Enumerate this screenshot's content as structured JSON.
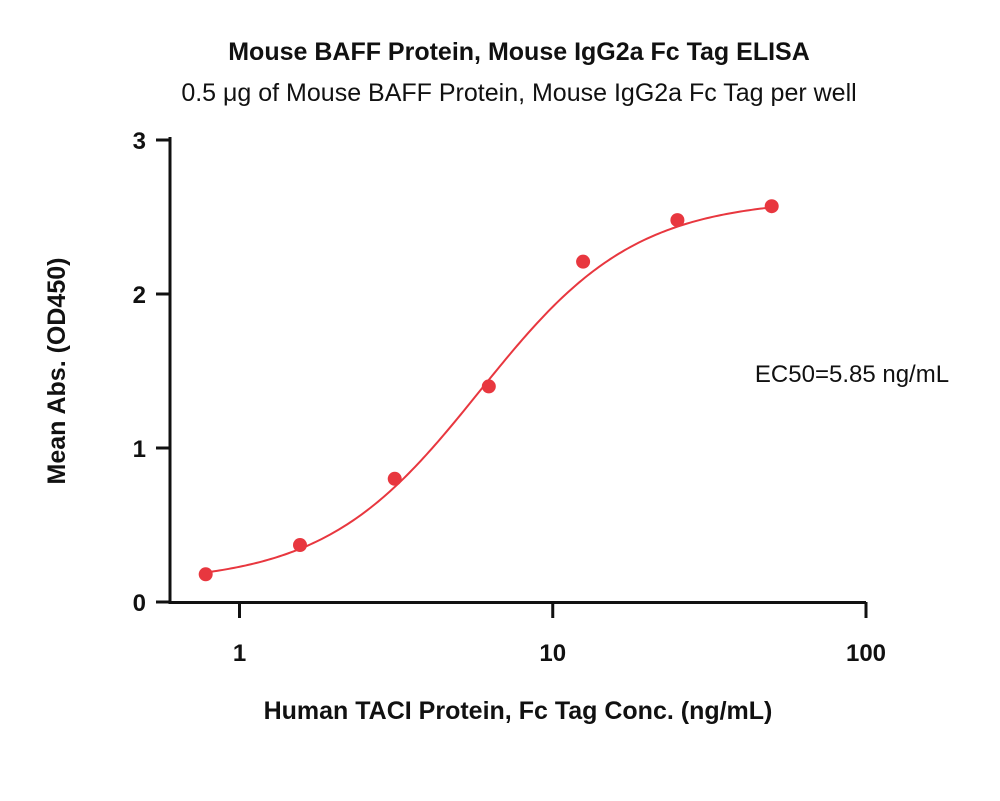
{
  "chart_data": {
    "type": "scatter",
    "title": "Mouse BAFF Protein, Mouse IgG2a Fc Tag ELISA",
    "subtitle": "0.5 μg of Mouse BAFF Protein, Mouse IgG2a Fc Tag per well",
    "xlabel": "Human TACI Protein, Fc Tag Conc. (ng/mL)",
    "ylabel": "Mean Abs. (OD450)",
    "x_scale": "log",
    "xlim": [
      0.6,
      100
    ],
    "ylim": [
      0,
      3
    ],
    "x_ticks": [
      1,
      10,
      100
    ],
    "x_tick_labels": [
      "1",
      "10",
      "100"
    ],
    "y_ticks": [
      0,
      1,
      2,
      3
    ],
    "y_tick_labels": [
      "0",
      "1",
      "2",
      "3"
    ],
    "grid": false,
    "color": "#e8373f",
    "series": [
      {
        "x": [
          0.78,
          1.56,
          3.13,
          6.25,
          12.5,
          25,
          50
        ],
        "y": [
          0.18,
          0.37,
          0.8,
          1.4,
          2.21,
          2.48,
          2.57
        ]
      }
    ],
    "fit_curve": {
      "model": "4PL",
      "bottom": 0.12,
      "top": 2.62,
      "ec50": 5.85,
      "hill": 1.75
    },
    "annotation": "EC50=5.85 ng/mL"
  }
}
